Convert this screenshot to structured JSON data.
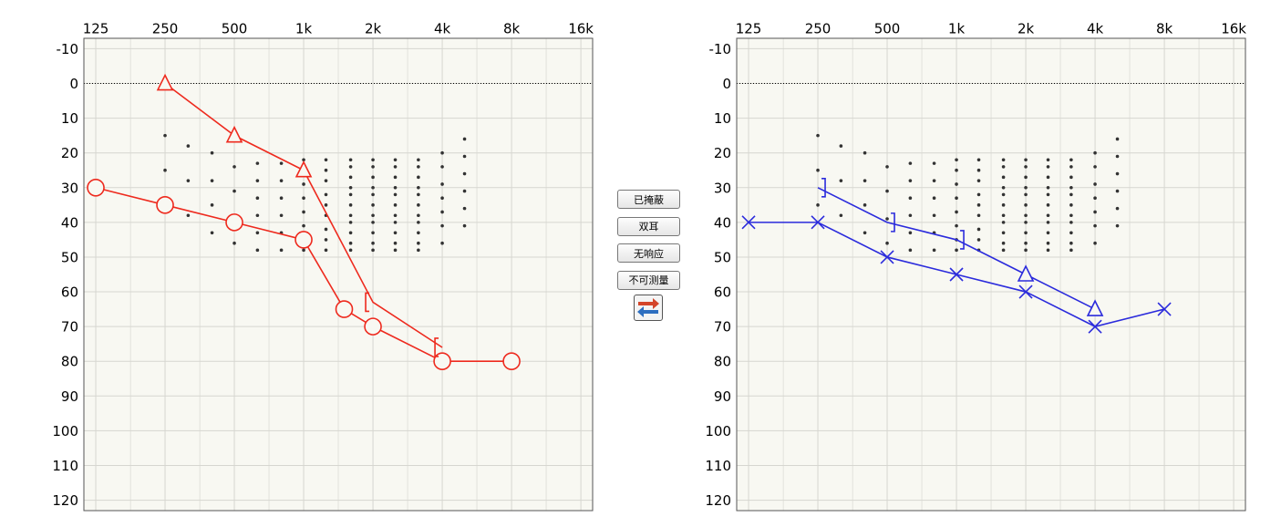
{
  "chart_data": [
    {
      "type": "line",
      "xscale": "log",
      "y_inverted": true,
      "grid": true,
      "reference_line": 0,
      "xlim": [
        111,
        18000
      ],
      "ylim": [
        -13,
        123
      ],
      "xticks": [
        125,
        250,
        500,
        {
          "value": 1000,
          "label": "1k"
        },
        {
          "value": 2000,
          "label": "2k"
        },
        {
          "value": 4000,
          "label": "4k"
        },
        {
          "value": 8000,
          "label": "8k"
        },
        {
          "value": 16000,
          "label": "16k"
        }
      ],
      "xminor": [
        177,
        354,
        707,
        1414,
        2828,
        5657,
        11314
      ],
      "yticks": [
        -10,
        0,
        10,
        20,
        30,
        40,
        50,
        60,
        70,
        80,
        90,
        100,
        110,
        120
      ],
      "banana": {
        "color": "#333333",
        "x": [
          250,
          315,
          400,
          500,
          630,
          800,
          1000,
          1250,
          1600,
          2000,
          2500,
          3150,
          4000,
          5000
        ],
        "values": [
          [
            15,
            25,
            35
          ],
          [
            18,
            28,
            38
          ],
          [
            20,
            28,
            35,
            43
          ],
          [
            24,
            31,
            39,
            46
          ],
          [
            23,
            28,
            33,
            38,
            43,
            48
          ],
          [
            23,
            28,
            33,
            38,
            43,
            48
          ],
          [
            22,
            25,
            29,
            33,
            37,
            41,
            45,
            48
          ],
          [
            22,
            25,
            28,
            32,
            35,
            38,
            42,
            45,
            48
          ],
          [
            22,
            24,
            27,
            30,
            32,
            35,
            38,
            40,
            43,
            46,
            48
          ],
          [
            22,
            24,
            27,
            30,
            32,
            35,
            38,
            40,
            43,
            46,
            48
          ],
          [
            22,
            24,
            27,
            30,
            32,
            35,
            38,
            40,
            43,
            46,
            48
          ],
          [
            22,
            24,
            27,
            30,
            32,
            35,
            38,
            40,
            43,
            46,
            48
          ],
          [
            20,
            24,
            29,
            33,
            37,
            41,
            46
          ],
          [
            16,
            21,
            26,
            31,
            36,
            41
          ]
        ]
      },
      "series": [
        {
          "color": "#ee2a1e",
          "x": [
            125,
            250,
            500,
            1000,
            1500,
            2000,
            4000,
            8000
          ],
          "values": [
            30,
            35,
            40,
            45,
            65,
            70,
            80,
            80
          ],
          "markers": [
            "circle",
            "circle",
            "circle",
            "circle",
            "circle",
            "circle",
            "circle",
            "circle"
          ]
        },
        {
          "color": "#ee2a1e",
          "x": [
            250,
            500,
            1000,
            2000,
            4000
          ],
          "values": [
            0,
            15,
            25,
            63,
            76
          ],
          "markers": [
            "triangle",
            "triangle",
            "triangle",
            "bracket-left",
            "bracket-left"
          ]
        }
      ]
    },
    {
      "type": "line",
      "xscale": "log",
      "y_inverted": true,
      "grid": true,
      "reference_line": 0,
      "xlim": [
        111,
        18000
      ],
      "ylim": [
        -13,
        123
      ],
      "xticks": [
        125,
        250,
        500,
        {
          "value": 1000,
          "label": "1k"
        },
        {
          "value": 2000,
          "label": "2k"
        },
        {
          "value": 4000,
          "label": "4k"
        },
        {
          "value": 8000,
          "label": "8k"
        },
        {
          "value": 16000,
          "label": "16k"
        }
      ],
      "xminor": [
        177,
        354,
        707,
        1414,
        2828,
        5657,
        11314
      ],
      "yticks": [
        -10,
        0,
        10,
        20,
        30,
        40,
        50,
        60,
        70,
        80,
        90,
        100,
        110,
        120
      ],
      "banana": {
        "color": "#333333",
        "x": [
          250,
          315,
          400,
          500,
          630,
          800,
          1000,
          1250,
          1600,
          2000,
          2500,
          3150,
          4000,
          5000
        ],
        "values": [
          [
            15,
            25,
            35
          ],
          [
            18,
            28,
            38
          ],
          [
            20,
            28,
            35,
            43
          ],
          [
            24,
            31,
            39,
            46
          ],
          [
            23,
            28,
            33,
            38,
            43,
            48
          ],
          [
            23,
            28,
            33,
            38,
            43,
            48
          ],
          [
            22,
            25,
            29,
            33,
            37,
            41,
            45,
            48
          ],
          [
            22,
            25,
            28,
            32,
            35,
            38,
            42,
            45,
            48
          ],
          [
            22,
            24,
            27,
            30,
            32,
            35,
            38,
            40,
            43,
            46,
            48
          ],
          [
            22,
            24,
            27,
            30,
            32,
            35,
            38,
            40,
            43,
            46,
            48
          ],
          [
            22,
            24,
            27,
            30,
            32,
            35,
            38,
            40,
            43,
            46,
            48
          ],
          [
            22,
            24,
            27,
            30,
            32,
            35,
            38,
            40,
            43,
            46,
            48
          ],
          [
            20,
            24,
            29,
            33,
            37,
            41,
            46
          ],
          [
            16,
            21,
            26,
            31,
            36,
            41
          ]
        ]
      },
      "series": [
        {
          "color": "#2b2bdc",
          "x": [
            125,
            250,
            500,
            1000,
            2000,
            4000,
            8000
          ],
          "values": [
            40,
            40,
            50,
            55,
            60,
            70,
            65
          ],
          "markers": [
            "cross",
            "cross",
            "cross",
            "cross",
            "cross",
            "cross",
            "cross"
          ]
        },
        {
          "color": "#2b2bdc",
          "x": [
            250,
            500,
            1000,
            2000,
            4000
          ],
          "values": [
            30,
            40,
            45,
            55,
            65
          ],
          "markers": [
            "bracket-right",
            "bracket-right",
            "bracket-right",
            "triangle",
            "triangle"
          ]
        }
      ]
    }
  ],
  "buttons": [
    "已掩蔽",
    "双耳",
    "无响应",
    "不可测量"
  ]
}
